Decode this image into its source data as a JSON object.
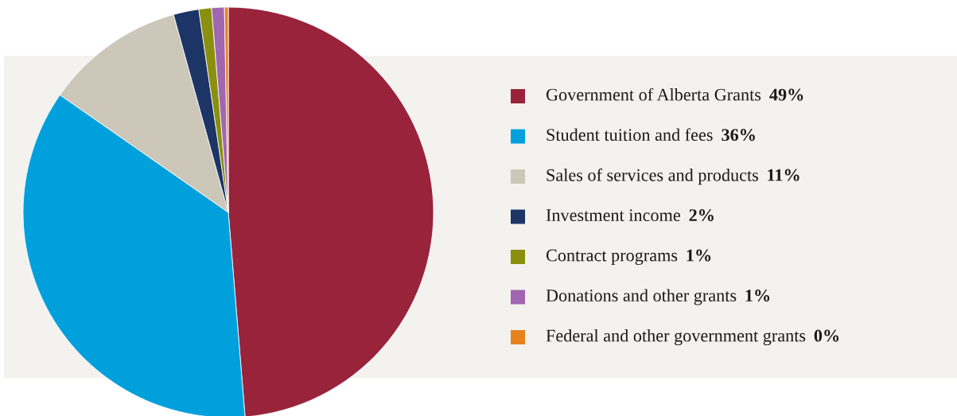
{
  "chart_data": {
    "type": "pie",
    "categories": [
      "Government of Alberta Grants",
      "Student tuition and fees",
      "Sales of services and products",
      "Investment income",
      "Contract programs",
      "Donations and other grants",
      "Federal and other government grants"
    ],
    "values": [
      48.7,
      36.0,
      11.0,
      2.0,
      1.0,
      1.0,
      0.3
    ],
    "value_labels": [
      "49%",
      "36%",
      "11%",
      "2%",
      "1%",
      "1%",
      "0%"
    ],
    "colors": [
      "#98233b",
      "#00a0dc",
      "#cdc7b9",
      "#1d3466",
      "#8a8f0e",
      "#a066b0",
      "#e8821e"
    ],
    "legend": "right"
  }
}
